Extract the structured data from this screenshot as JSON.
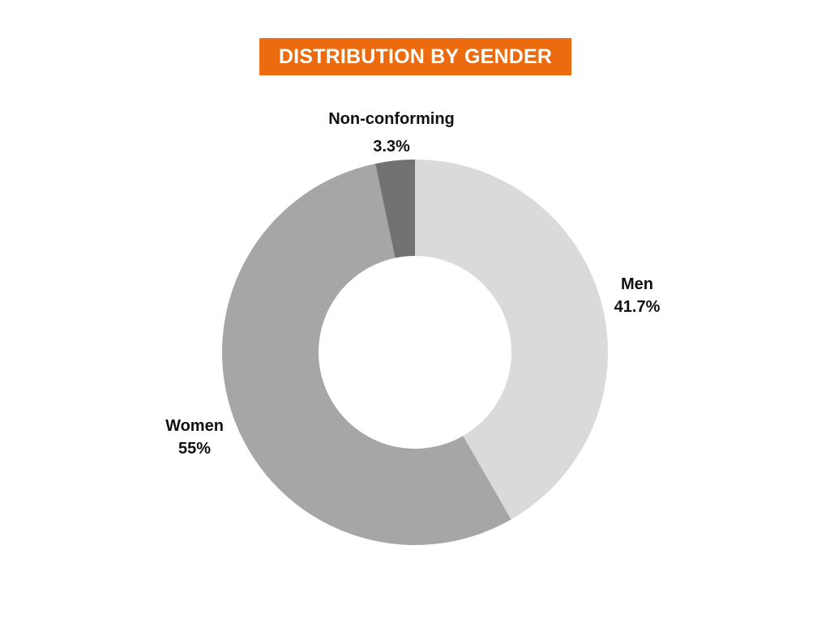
{
  "chart_data": {
    "type": "pie",
    "variant": "donut",
    "title": "DISTRIBUTION BY GENDER",
    "categories": [
      "Men",
      "Women",
      "Non-conforming"
    ],
    "values": [
      41.7,
      55,
      3.3
    ],
    "value_labels": [
      "41.7%",
      "55%",
      "3.3%"
    ],
    "colors": [
      "#dadada",
      "#a6a6a6",
      "#727272"
    ],
    "title_color": "#ec6b0e",
    "legend": "none"
  }
}
